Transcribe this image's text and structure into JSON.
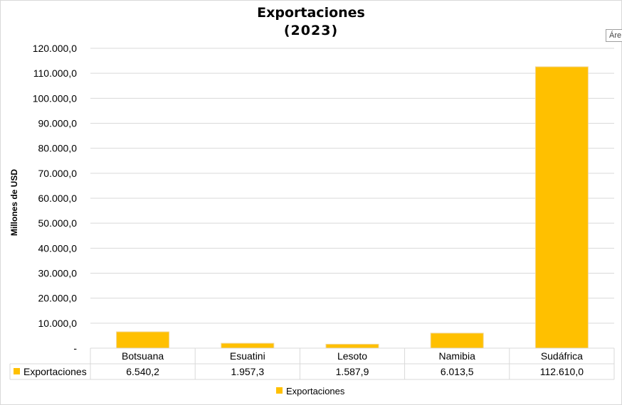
{
  "chart_data": {
    "type": "bar",
    "title": "Exportaciones",
    "subtitle": "(2023)",
    "ylabel": "Millones de USD",
    "xlabel": "",
    "categories": [
      "Botsuana",
      "Esuatini",
      "Lesoto",
      "Namibia",
      "Sudáfrica"
    ],
    "series": [
      {
        "name": "Exportaciones",
        "values": [
          6540.2,
          1957.3,
          1587.9,
          6013.5,
          112610.0
        ],
        "value_labels": [
          "6.540,2",
          "1.957,3",
          "1.587,9",
          "6.013,5",
          "112.610,0"
        ],
        "color": "#ffc000"
      }
    ],
    "ylim": [
      0,
      120000
    ],
    "yticks": [
      0,
      10000,
      20000,
      30000,
      40000,
      50000,
      60000,
      70000,
      80000,
      90000,
      100000,
      110000,
      120000
    ],
    "ytick_labels": [
      "-",
      "10.000,0",
      "20.000,0",
      "30.000,0",
      "40.000,0",
      "50.000,0",
      "60.000,0",
      "70.000,0",
      "80.000,0",
      "90.000,0",
      "100.000,0",
      "110.000,0",
      "120.000,0"
    ],
    "grid": true,
    "data_table": true,
    "legend_position": "bottom",
    "legend": [
      "Exportaciones"
    ]
  },
  "tooltip_text": "Áre"
}
